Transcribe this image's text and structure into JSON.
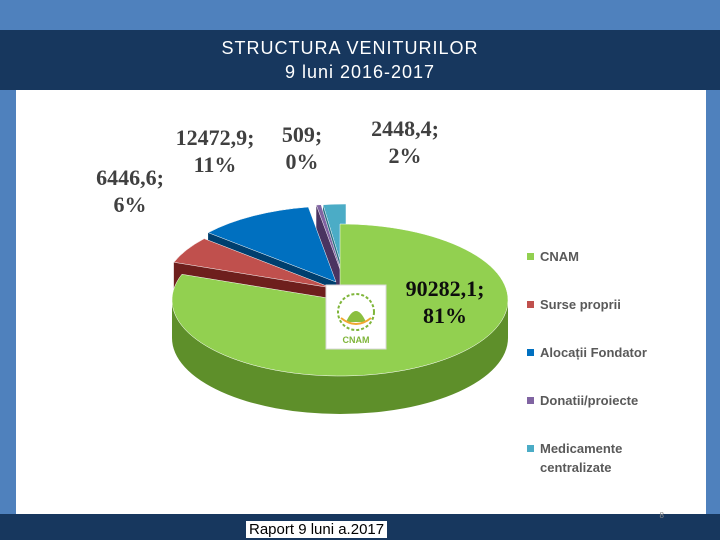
{
  "title": {
    "line1": "STRUCTURA VENITURILOR",
    "line2": "9 luni 2016-2017"
  },
  "footer": {
    "text": "Raport 9 luni a.2017",
    "page": "8"
  },
  "logo": {
    "text": "CNAM"
  },
  "colors": {
    "frame": "#4f81bd",
    "title_bar": "#17375e"
  },
  "chart_data": {
    "type": "pie",
    "three_d": true,
    "legend_position": "right",
    "slices": [
      {
        "name": "CNAM",
        "value": 90282.1,
        "percent": 81,
        "label": "90282,1;",
        "pct_label": "81%",
        "color": "#92d050",
        "dark": "#5e8f2a"
      },
      {
        "name": "Surse proprii",
        "value": 6446.6,
        "percent": 6,
        "label": "6446,6;",
        "pct_label": "6%",
        "color": "#c0504d",
        "dark": "#6e1f1d"
      },
      {
        "name": "Alocații Fondator",
        "value": 12472.9,
        "percent": 11,
        "label": "12472,9;",
        "pct_label": "11%",
        "color": "#0070c0",
        "dark": "#003f6e"
      },
      {
        "name": "Donatii/proiecte",
        "value": 509,
        "percent": 0,
        "label": "509;",
        "pct_label": "0%",
        "color": "#8064a2",
        "dark": "#4a3461"
      },
      {
        "name": "Medicamente centralizate",
        "value": 2448.4,
        "percent": 2,
        "label": "2448,4;",
        "pct_label": "2%",
        "color": "#4bacc6",
        "dark": "#2a6f82"
      }
    ],
    "legend": [
      {
        "line1": "CNAM",
        "line2": ""
      },
      {
        "line1": "Surse proprii",
        "line2": ""
      },
      {
        "line1": "Alocații Fondator",
        "line2": ""
      },
      {
        "line1": "Donatii/proiecte",
        "line2": ""
      },
      {
        "line1": "Medicamente",
        "line2": "centralizate"
      }
    ]
  }
}
